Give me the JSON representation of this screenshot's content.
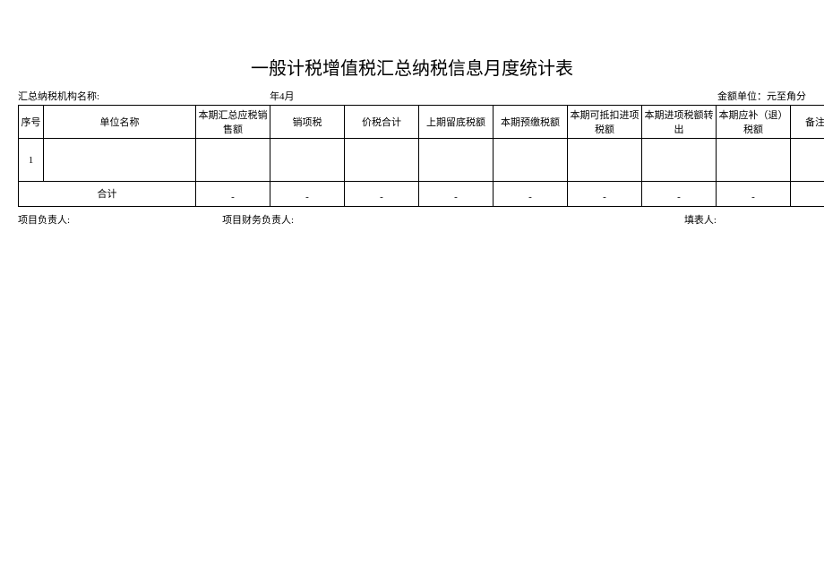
{
  "title": "一般计税增值税汇总纳税信息月度统计表",
  "header": {
    "left_label": "汇总纳税机构名称:",
    "center_label": "年4月",
    "right_label": "金额单位：元至角分"
  },
  "columns": {
    "seq": "序号",
    "unit_name": "单位名称",
    "c1": "本期汇总应税销售额",
    "c2": "销项税",
    "c3": "价税合计",
    "c4": "上期留底税额",
    "c5": "本期预缴税额",
    "c6": "本期可抵扣进项税额",
    "c7": "本期进项税额转出",
    "c8": "本期应补（退）税额",
    "remark": "备注"
  },
  "rows": [
    {
      "seq": "1",
      "unit_name": "",
      "c1": "",
      "c2": "",
      "c3": "",
      "c4": "",
      "c5": "",
      "c6": "",
      "c7": "",
      "c8": "",
      "remark": ""
    }
  ],
  "total": {
    "label": "合计",
    "c1": "-",
    "c2": "-",
    "c3": "-",
    "c4": "-",
    "c5": "-",
    "c6": "-",
    "c7": "-",
    "c8": "-",
    "remark": ""
  },
  "footer": {
    "left": "项目负责人:",
    "center": "项目财务负责人:",
    "right": "填表人:"
  }
}
